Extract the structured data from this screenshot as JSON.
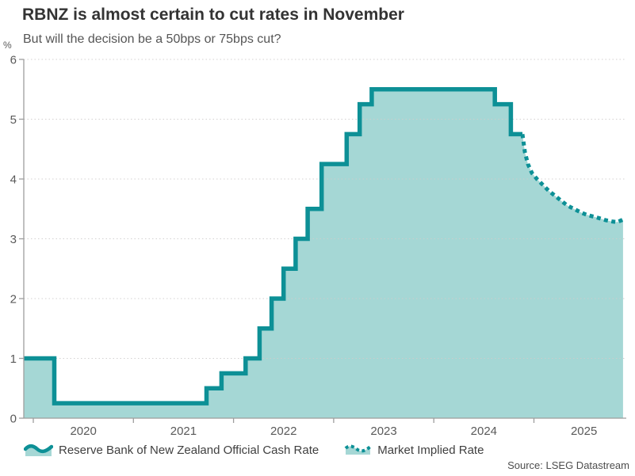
{
  "header": {
    "title": "RBNZ is almost certain to cut rates in November",
    "subtitle": "But will the decision be a 50bps or 75bps cut?"
  },
  "source": "Source: LSEG Datastream",
  "chart_data": {
    "type": "area",
    "title": "RBNZ is almost certain to cut rates in November",
    "subtitle": "But will the decision be a 50bps or 75bps cut?",
    "ylabel": "%",
    "xlabel": "",
    "ylim": [
      0,
      6
    ],
    "yticks": [
      0,
      1,
      2,
      3,
      4,
      5,
      6
    ],
    "year_ticks": [
      2020,
      2021,
      2022,
      2023,
      2024,
      2025
    ],
    "x_range_years": [
      2019.905,
      2025.92
    ],
    "grid": "horizontal-dotted",
    "legend_position": "bottom",
    "colors": {
      "line": "#0d9096",
      "fill": "#a5d7d5",
      "grid": "#cfcccc",
      "axis": "#9e9e9e",
      "tick_text": "#595959",
      "title_text": "#333333"
    },
    "series": [
      {
        "name": "Reserve Bank of New Zealand Official Cash Rate",
        "style": "solid",
        "step": true,
        "points": [
          [
            2019.905,
            1.0
          ],
          [
            2020.21,
            0.25
          ],
          [
            2021.73,
            0.5
          ],
          [
            2021.88,
            0.75
          ],
          [
            2022.12,
            1.0
          ],
          [
            2022.26,
            1.5
          ],
          [
            2022.38,
            2.0
          ],
          [
            2022.5,
            2.5
          ],
          [
            2022.62,
            3.0
          ],
          [
            2022.74,
            3.5
          ],
          [
            2022.88,
            4.25
          ],
          [
            2023.13,
            4.75
          ],
          [
            2023.26,
            5.25
          ],
          [
            2023.38,
            5.5
          ],
          [
            2024.61,
            5.25
          ],
          [
            2024.77,
            4.75
          ],
          [
            2024.885,
            4.75
          ]
        ]
      },
      {
        "name": "Market Implied Rate",
        "style": "dotted",
        "step": false,
        "points": [
          [
            2024.885,
            4.75
          ],
          [
            2024.91,
            4.45
          ],
          [
            2024.94,
            4.25
          ],
          [
            2024.98,
            4.1
          ],
          [
            2025.03,
            4.0
          ],
          [
            2025.09,
            3.9
          ],
          [
            2025.15,
            3.8
          ],
          [
            2025.21,
            3.72
          ],
          [
            2025.27,
            3.64
          ],
          [
            2025.33,
            3.56
          ],
          [
            2025.4,
            3.5
          ],
          [
            2025.47,
            3.44
          ],
          [
            2025.53,
            3.4
          ],
          [
            2025.6,
            3.37
          ],
          [
            2025.66,
            3.34
          ],
          [
            2025.72,
            3.31
          ],
          [
            2025.78,
            3.29
          ],
          [
            2025.83,
            3.28
          ],
          [
            2025.89,
            3.32
          ]
        ]
      }
    ]
  }
}
